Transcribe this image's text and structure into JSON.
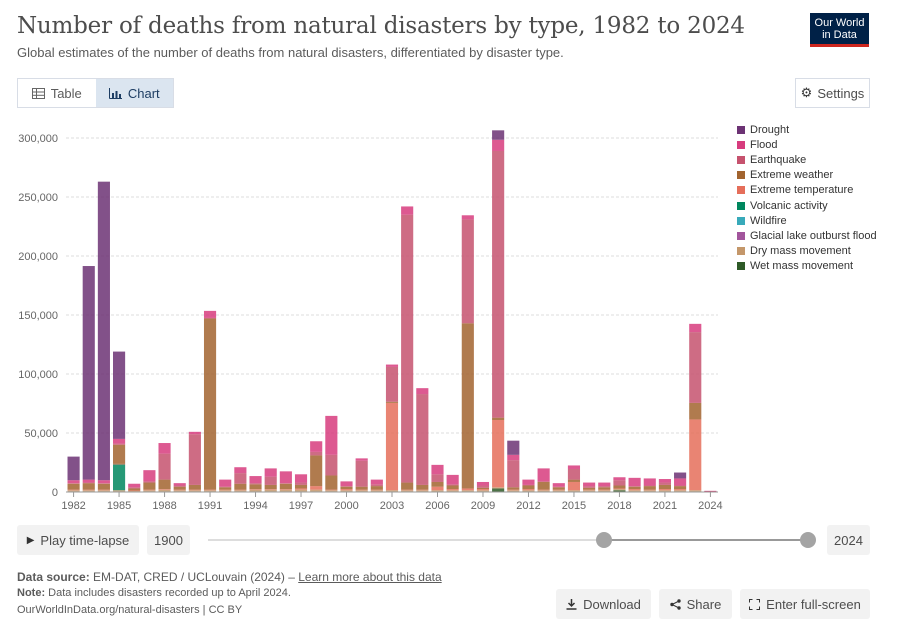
{
  "header": {
    "title": "Number of deaths from natural disasters by type, 1982 to 2024",
    "subtitle": "Global estimates of the number of deaths from natural disasters, differentiated by disaster type.",
    "logo_line1": "Our World",
    "logo_line2": "in Data"
  },
  "tabs": {
    "table_label": "Table",
    "chart_label": "Chart"
  },
  "settings_label": "Settings",
  "controls": {
    "play_label": "Play time-lapse",
    "start_year": "1900",
    "end_year": "2024"
  },
  "footer": {
    "source_label": "Data source:",
    "source_text": "EM-DAT, CRED / UCLouvain (2024) – ",
    "learn_more": "Learn more about this data",
    "note_label": "Note:",
    "note_text": "Data includes disasters recorded up to April 2024.",
    "url_text": "OurWorldInData.org/natural-disasters | CC BY"
  },
  "actions": {
    "download": "Download",
    "share": "Share",
    "fullscreen": "Enter full-screen"
  },
  "chart_data": {
    "type": "bar",
    "stacked": true,
    "ylim": [
      0,
      300000
    ],
    "y_ticks": [
      0,
      50000,
      100000,
      150000,
      200000,
      250000,
      300000
    ],
    "y_tick_labels": [
      "0",
      "50,000",
      "100,000",
      "150,000",
      "200,000",
      "250,000",
      "300,000"
    ],
    "x_tick_labels": [
      "1982",
      "1985",
      "1988",
      "1991",
      "1994",
      "1997",
      "2000",
      "2003",
      "2006",
      "2009",
      "2012",
      "2015",
      "2018",
      "2021",
      "2024"
    ],
    "grid": true,
    "legend_position": "right",
    "categories": [
      "1982",
      "1983",
      "1984",
      "1985",
      "1986",
      "1987",
      "1988",
      "1989",
      "1990",
      "1991",
      "1992",
      "1993",
      "1994",
      "1995",
      "1996",
      "1997",
      "1998",
      "1999",
      "2000",
      "2001",
      "2002",
      "2003",
      "2004",
      "2005",
      "2006",
      "2007",
      "2008",
      "2009",
      "2010",
      "2011",
      "2012",
      "2013",
      "2014",
      "2015",
      "2016",
      "2017",
      "2018",
      "2019",
      "2020",
      "2021",
      "2022",
      "2023",
      "2024"
    ],
    "series": [
      {
        "name": "Wet mass movement",
        "color": "#2e5a27",
        "values": [
          500,
          500,
          500,
          500,
          300,
          500,
          500,
          500,
          500,
          500,
          500,
          500,
          500,
          500,
          500,
          500,
          500,
          500,
          500,
          500,
          500,
          500,
          500,
          500,
          500,
          500,
          500,
          500,
          3000,
          500,
          500,
          500,
          500,
          500,
          500,
          500,
          1500,
          500,
          500,
          500,
          500,
          500,
          200
        ]
      },
      {
        "name": "Dry mass movement",
        "color": "#c4976a",
        "values": [
          1000,
          1000,
          1000,
          1000,
          500,
          1000,
          1500,
          1000,
          1000,
          1000,
          1000,
          1000,
          1500,
          1500,
          1500,
          1500,
          1500,
          1000,
          1000,
          1000,
          1000,
          1000,
          1000,
          1000,
          1000,
          1000,
          1000,
          1000,
          1000,
          1000,
          1000,
          1000,
          1000,
          1000,
          1000,
          1000,
          1000,
          1000,
          1000,
          1000,
          1000,
          1000,
          100
        ]
      },
      {
        "name": "Glacial lake outburst flood",
        "color": "#a2559c",
        "values": [
          0,
          0,
          0,
          0,
          0,
          0,
          0,
          0,
          0,
          0,
          0,
          0,
          0,
          0,
          0,
          0,
          0,
          0,
          0,
          0,
          0,
          0,
          0,
          0,
          0,
          0,
          0,
          0,
          0,
          0,
          0,
          0,
          0,
          0,
          0,
          0,
          0,
          0,
          0,
          0,
          0,
          0,
          0
        ]
      },
      {
        "name": "Wildfire",
        "color": "#38aaba",
        "values": [
          0,
          0,
          0,
          0,
          0,
          0,
          0,
          0,
          0,
          0,
          0,
          0,
          0,
          0,
          0,
          0,
          0,
          0,
          0,
          0,
          0,
          0,
          0,
          0,
          0,
          0,
          0,
          0,
          0,
          0,
          0,
          0,
          0,
          0,
          0,
          0,
          0,
          0,
          0,
          0,
          0,
          0,
          0
        ]
      },
      {
        "name": "Volcanic activity",
        "color": "#00875e",
        "values": [
          0,
          0,
          0,
          21800,
          0,
          0,
          0,
          0,
          0,
          0,
          0,
          0,
          0,
          0,
          0,
          0,
          0,
          0,
          0,
          0,
          0,
          0,
          0,
          0,
          0,
          0,
          0,
          0,
          0,
          0,
          0,
          0,
          0,
          0,
          0,
          0,
          0,
          0,
          0,
          0,
          0,
          0,
          0
        ]
      },
      {
        "name": "Extreme temperature",
        "color": "#e56e5a",
        "values": [
          500,
          500,
          500,
          500,
          500,
          500,
          500,
          500,
          500,
          500,
          500,
          500,
          500,
          500,
          500,
          1000,
          3000,
          500,
          1000,
          500,
          500,
          74000,
          500,
          500,
          3000,
          1000,
          1500,
          1000,
          57000,
          500,
          1000,
          500,
          500,
          7000,
          500,
          500,
          500,
          1000,
          500,
          1000,
          1000,
          60000,
          200
        ]
      },
      {
        "name": "Extreme weather",
        "color": "#a2642f",
        "values": [
          5000,
          5500,
          5000,
          16200,
          1700,
          6000,
          8000,
          2500,
          4000,
          145000,
          2000,
          5000,
          4000,
          3500,
          4500,
          3000,
          26000,
          12000,
          2000,
          2500,
          3000,
          1000,
          6000,
          4000,
          4000,
          3000,
          140000,
          1000,
          2000,
          2000,
          3000,
          6500,
          2000,
          2000,
          1500,
          2000,
          2500,
          2000,
          3000,
          3500,
          2500,
          14000,
          100
        ]
      },
      {
        "name": "Earthquake",
        "color": "#c6526e",
        "values": [
          500,
          500,
          500,
          1000,
          1000,
          1000,
          22000,
          1000,
          43000,
          500,
          500,
          9000,
          1000,
          7000,
          500,
          2000,
          3000,
          17500,
          500,
          22000,
          1500,
          29500,
          227000,
          77000,
          6500,
          1000,
          88000,
          2000,
          226000,
          23000,
          500,
          500,
          500,
          9000,
          1500,
          1000,
          4500,
          500,
          500,
          2000,
          500,
          60000,
          200
        ]
      },
      {
        "name": "Flood",
        "color": "#d73c7e",
        "values": [
          2500,
          2500,
          2500,
          4000,
          3000,
          9500,
          9000,
          2000,
          2000,
          6000,
          6000,
          5000,
          6000,
          7000,
          10000,
          7000,
          9000,
          33000,
          4000,
          2000,
          4000,
          2000,
          7000,
          5000,
          8000,
          8000,
          3500,
          3000,
          9500,
          4500,
          4500,
          11000,
          3000,
          3000,
          3000,
          3000,
          2500,
          7000,
          6000,
          3000,
          6000,
          7000,
          200
        ]
      },
      {
        "name": "Drought",
        "color": "#6c3274",
        "values": [
          20000,
          181000,
          253000,
          74000,
          0,
          0,
          0,
          0,
          0,
          0,
          0,
          0,
          0,
          0,
          0,
          0,
          0,
          0,
          0,
          0,
          0,
          0,
          0,
          0,
          0,
          0,
          0,
          0,
          8000,
          12000,
          0,
          0,
          0,
          0,
          0,
          0,
          0,
          0,
          0,
          0,
          5000,
          0,
          0
        ]
      }
    ]
  }
}
